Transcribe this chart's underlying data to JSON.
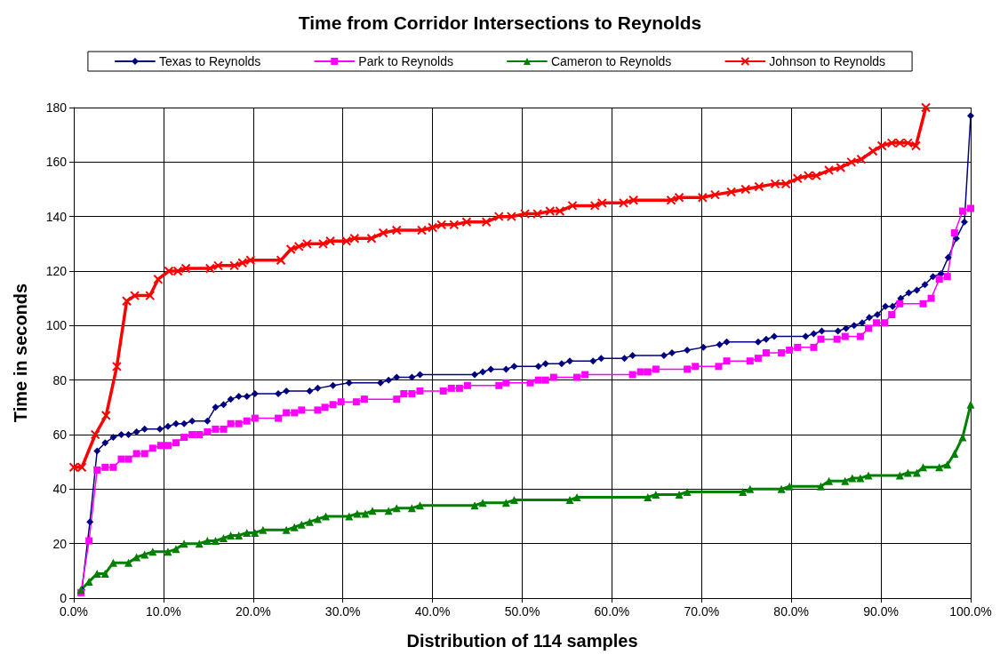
{
  "chart_data": {
    "type": "line",
    "title": "Time from Corridor Intersections to Reynolds",
    "xlabel": "Distribution of 114 samples",
    "ylabel": "Time in seconds",
    "xlim": [
      0,
      100
    ],
    "ylim": [
      0,
      180
    ],
    "xticks": [
      {
        "value": 0,
        "label": "0.0%"
      },
      {
        "value": 10,
        "label": "10.0%"
      },
      {
        "value": 20,
        "label": "20.0%"
      },
      {
        "value": 30,
        "label": "30.0%"
      },
      {
        "value": 40,
        "label": "40.0%"
      },
      {
        "value": 50,
        "label": "50.0%"
      },
      {
        "value": 60,
        "label": "60.0%"
      },
      {
        "value": 70,
        "label": "70.0%"
      },
      {
        "value": 80,
        "label": "80.0%"
      },
      {
        "value": 90,
        "label": "90.0%"
      },
      {
        "value": 100,
        "label": "100.0%"
      }
    ],
    "yticks": [
      0,
      20,
      40,
      60,
      80,
      100,
      120,
      140,
      160,
      180
    ],
    "grid": true,
    "legend": "top",
    "line_style": "solid",
    "series": [
      {
        "name": "Texas to Reynolds",
        "color": "#000080",
        "marker": "diamond",
        "x": [
          0.9,
          1.8,
          2.6,
          3.5,
          4.4,
          5.3,
          6.1,
          7.0,
          7.9,
          9.6,
          10.5,
          11.4,
          12.3,
          13.2,
          14.9,
          15.8,
          16.7,
          17.5,
          18.4,
          19.3,
          20.2,
          22.8,
          23.7,
          26.3,
          27.2,
          28.9,
          30.7,
          34.2,
          35.1,
          36.0,
          37.7,
          38.6,
          44.7,
          45.6,
          46.5,
          48.2,
          49.1,
          51.8,
          52.6,
          54.4,
          55.3,
          57.9,
          58.8,
          61.4,
          62.3,
          65.8,
          66.7,
          68.4,
          70.2,
          72.0,
          72.8,
          76.3,
          77.2,
          78.1,
          81.6,
          82.5,
          83.4,
          85.2,
          86.1,
          87.0,
          87.9,
          88.7,
          89.6,
          90.5,
          91.3,
          92.2,
          93.1,
          94.0,
          94.9,
          95.8,
          96.7,
          97.5,
          98.4,
          99.3,
          100
        ],
        "values": [
          3,
          28,
          54,
          57,
          59,
          60,
          60,
          61,
          62,
          62,
          63,
          64,
          64,
          65,
          65,
          70,
          71,
          73,
          74,
          74,
          75,
          75,
          76,
          76,
          77,
          78,
          79,
          79,
          80,
          81,
          81,
          82,
          82,
          83,
          84,
          84,
          85,
          85,
          86,
          86,
          87,
          87,
          88,
          88,
          89,
          89,
          90,
          91,
          92,
          93,
          94,
          94,
          95,
          96,
          96,
          97,
          98,
          98,
          99,
          100,
          101,
          103,
          104,
          107,
          107,
          110,
          112,
          113,
          115,
          118,
          119,
          125,
          132,
          138,
          177
        ]
      },
      {
        "name": "Park to Reynolds",
        "color": "#ff00ff",
        "marker": "square",
        "x": [
          0.8,
          1.7,
          2.6,
          3.5,
          4.4,
          5.3,
          6.1,
          7.0,
          7.9,
          8.8,
          9.7,
          10.5,
          11.4,
          12.3,
          13.2,
          14.0,
          14.9,
          15.8,
          16.7,
          17.5,
          18.4,
          19.3,
          20.2,
          22.8,
          23.7,
          24.6,
          25.4,
          27.2,
          28.0,
          28.9,
          29.8,
          31.5,
          32.4,
          36.0,
          36.8,
          37.7,
          38.6,
          41.2,
          42.1,
          43.0,
          43.9,
          47.4,
          48.2,
          50.9,
          51.8,
          52.6,
          53.5,
          56.1,
          57.0,
          62.3,
          63.2,
          64.0,
          64.9,
          68.4,
          69.3,
          71.9,
          72.8,
          75.4,
          76.3,
          77.2,
          78.9,
          79.8,
          80.7,
          82.5,
          83.3,
          85.1,
          86.0,
          87.7,
          88.6,
          89.5,
          90.4,
          91.2,
          92.1,
          94.7,
          95.6,
          96.5,
          97.4,
          98.2,
          99.1,
          100
        ],
        "values": [
          2,
          21,
          47,
          48,
          48,
          51,
          51,
          53,
          53,
          55,
          56,
          56,
          57,
          59,
          60,
          60,
          61,
          62,
          62,
          64,
          64,
          65,
          66,
          66,
          68,
          68,
          69,
          69,
          70,
          71,
          72,
          72,
          73,
          73,
          75,
          75,
          76,
          76,
          77,
          77,
          78,
          78,
          79,
          79,
          80,
          80,
          81,
          81,
          82,
          82,
          83,
          83,
          84,
          84,
          85,
          85,
          87,
          87,
          88,
          90,
          90,
          91,
          92,
          92,
          95,
          95,
          96,
          96,
          99,
          101,
          101,
          104,
          108,
          108,
          110,
          117,
          118,
          134,
          142,
          143
        ]
      },
      {
        "name": "Cameron to Reynolds",
        "color": "#008000",
        "marker": "triangle",
        "x": [
          0.8,
          1.7,
          2.6,
          3.5,
          4.4,
          6.1,
          7.0,
          7.9,
          8.8,
          10.5,
          11.4,
          12.3,
          14.0,
          14.9,
          15.8,
          16.7,
          17.5,
          18.4,
          19.3,
          20.2,
          21.1,
          23.7,
          24.6,
          25.4,
          26.3,
          27.2,
          28.1,
          30.7,
          31.6,
          32.5,
          33.3,
          35.1,
          36.0,
          37.7,
          38.6,
          44.7,
          45.6,
          48.2,
          49.1,
          55.3,
          56.1,
          64.0,
          64.9,
          67.5,
          68.4,
          74.6,
          75.4,
          78.9,
          79.8,
          83.3,
          84.2,
          86.0,
          86.8,
          87.7,
          88.6,
          92.1,
          93.0,
          94.0,
          94.7,
          96.5,
          97.4,
          98.2,
          99.1,
          100
        ],
        "values": [
          3,
          6,
          9,
          9,
          13,
          13,
          15,
          16,
          17,
          17,
          18,
          20,
          20,
          21,
          21,
          22,
          23,
          23,
          24,
          24,
          25,
          25,
          26,
          27,
          28,
          29,
          30,
          30,
          31,
          31,
          32,
          32,
          33,
          33,
          34,
          34,
          35,
          35,
          36,
          36,
          37,
          37,
          38,
          38,
          39,
          39,
          40,
          40,
          41,
          41,
          43,
          43,
          44,
          44,
          45,
          45,
          46,
          46,
          48,
          48,
          49,
          53,
          59,
          71
        ]
      },
      {
        "name": "Johnson to Reynolds",
        "color": "#ff0000",
        "marker": "cross",
        "x": [
          0,
          0.9,
          2.4,
          3.6,
          4.8,
          5.9,
          6.8,
          8.5,
          9.4,
          10.6,
          11.6,
          12.5,
          15.2,
          16.1,
          17.9,
          18.8,
          19.7,
          23.1,
          24.2,
          25.1,
          26.0,
          27.8,
          28.6,
          30.4,
          31.3,
          33.2,
          34.5,
          36.0,
          38.8,
          40.0,
          41.0,
          42.4,
          43.8,
          46.0,
          47.4,
          48.8,
          50.3,
          51.7,
          53.1,
          54.2,
          55.6,
          58.1,
          58.9,
          61.3,
          62.4,
          66.6,
          67.5,
          70.1,
          71.5,
          73.3,
          74.9,
          76.4,
          78.2,
          79.4,
          80.7,
          81.9,
          82.8,
          84.2,
          85.5,
          86.7,
          87.8,
          89.1,
          90.1,
          91.2,
          92.1,
          93.0,
          93.9,
          95.0
        ],
        "values": [
          48,
          48,
          60,
          67,
          85,
          109,
          111,
          111,
          117,
          120,
          120,
          121,
          121,
          122,
          122,
          123,
          124,
          124,
          128,
          129,
          130,
          130,
          131,
          131,
          132,
          132,
          134,
          135,
          135,
          136,
          137,
          137,
          138,
          138,
          140,
          140,
          141,
          141,
          142,
          142,
          144,
          144,
          145,
          145,
          146,
          146,
          147,
          147,
          148,
          149,
          150,
          151,
          152,
          152,
          154,
          155,
          155,
          157,
          158,
          160,
          161,
          164,
          166,
          167,
          167,
          167,
          166,
          180
        ]
      }
    ]
  }
}
